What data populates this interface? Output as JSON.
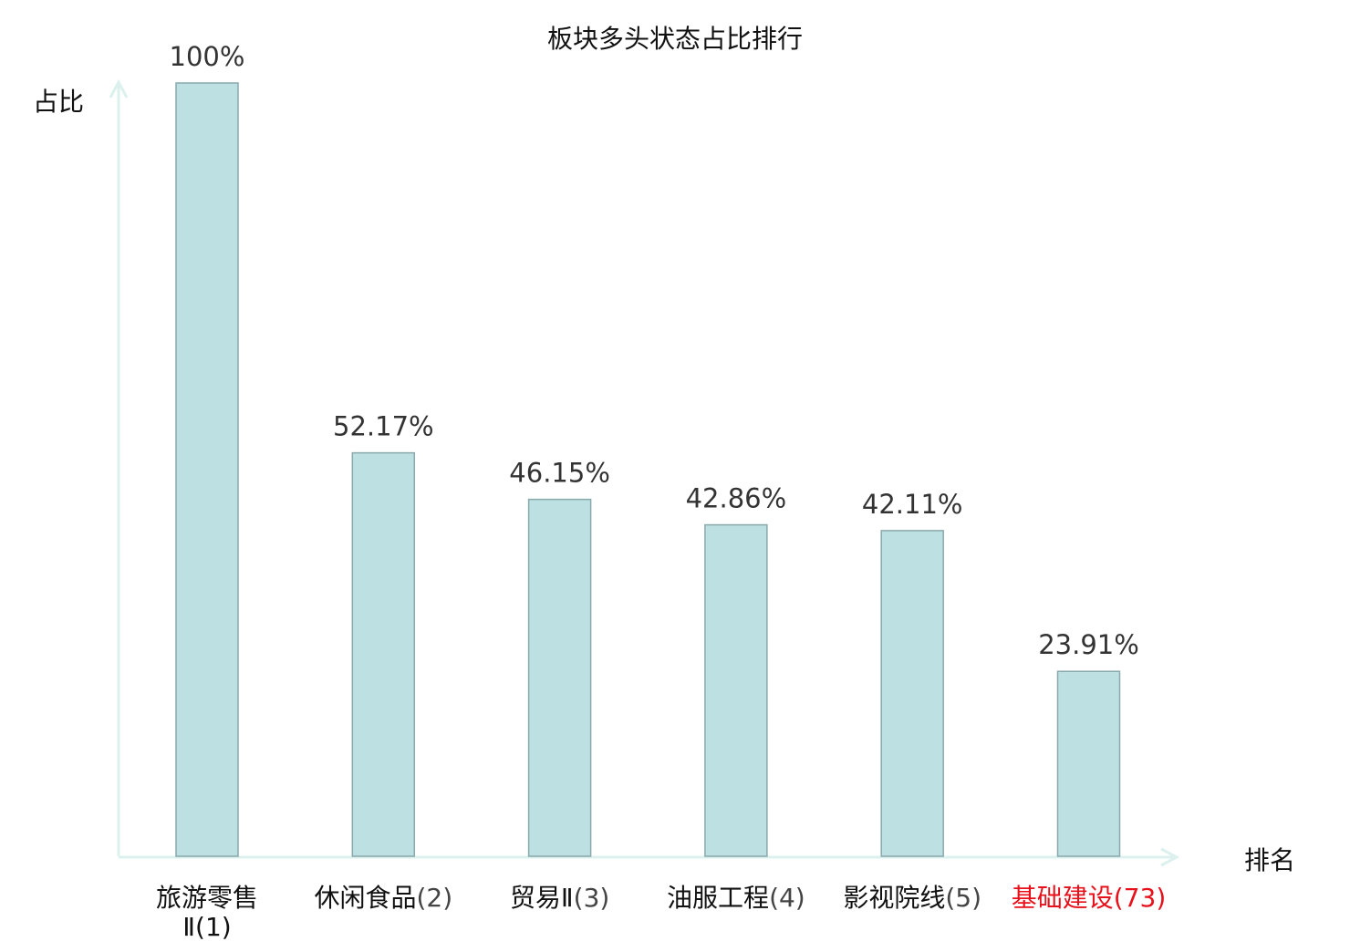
{
  "chart_data": {
    "type": "bar",
    "title": "板块多头状态占比排行",
    "ylabel": "占比",
    "xlabel": "排名",
    "ylim": [
      0,
      100
    ],
    "grid": false,
    "categories": [
      {
        "name": "旅游零售Ⅱ",
        "rank": "(1)",
        "highlight": false
      },
      {
        "name": "休闲食品",
        "rank": "(2)",
        "highlight": false
      },
      {
        "name": "贸易Ⅱ",
        "rank": "(3)",
        "highlight": false
      },
      {
        "name": "油服工程",
        "rank": "(4)",
        "highlight": false
      },
      {
        "name": "影视院线",
        "rank": "(5)",
        "highlight": false
      },
      {
        "name": "基础建设",
        "rank": "(73)",
        "highlight": true
      }
    ],
    "values": [
      100,
      52.17,
      46.15,
      42.86,
      42.11,
      23.91
    ],
    "data_labels": [
      "100%",
      "52.17%",
      "46.15%",
      "42.86%",
      "42.11%",
      "23.91%"
    ],
    "colors": {
      "bar_fill": "#bde0e3",
      "bar_stroke": "#8aa9ab",
      "axis": "#dcf1ee",
      "highlight": "#e8101a",
      "label": "#333333"
    }
  }
}
